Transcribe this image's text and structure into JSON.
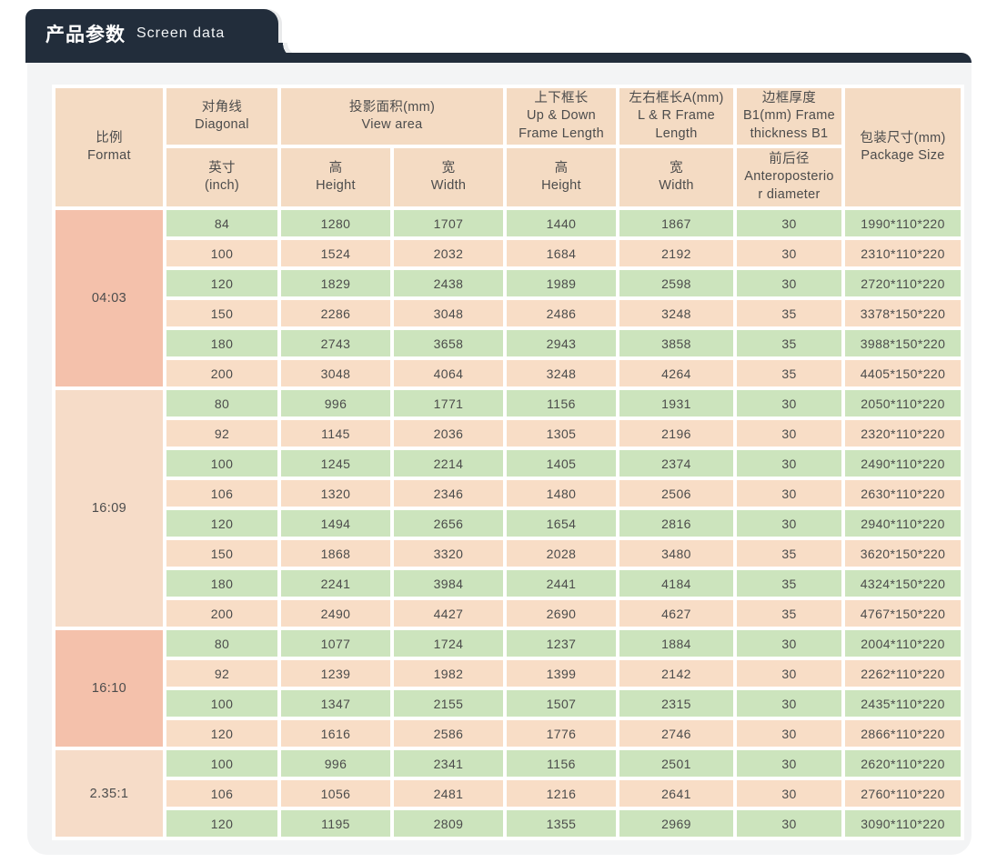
{
  "banner": {
    "title_zh": "产品参数",
    "title_en": "Screen data"
  },
  "table": {
    "header": {
      "format": [
        "比例",
        "Format"
      ],
      "diagonal": [
        "对角线",
        "Diagonal"
      ],
      "diagonal_sub": [
        "英寸",
        "(inch)"
      ],
      "view_area": [
        "投影面积(mm)",
        "View area"
      ],
      "view_height": [
        "高",
        "Height"
      ],
      "view_width": [
        "宽",
        "Width"
      ],
      "ud_frame": [
        "上下框长",
        "Up & Down",
        "Frame Length"
      ],
      "ud_sub": [
        "高",
        "Height"
      ],
      "lr_frame": [
        "左右框长A(mm)",
        "L & R Frame",
        "Length"
      ],
      "lr_sub": [
        "宽",
        "Width"
      ],
      "thickness": [
        "边框厚度",
        "B1(mm) Frame",
        "thickness B1"
      ],
      "thickness_sub": [
        "前后径",
        "Anteroposterio",
        "r diameter"
      ],
      "package": [
        "包装尺寸(mm)",
        "Package Size"
      ]
    },
    "groups": [
      {
        "format": "04:03",
        "tone": "salmon",
        "rows": [
          [
            84,
            1280,
            1707,
            1440,
            1867,
            30,
            "1990*110*220"
          ],
          [
            100,
            1524,
            2032,
            1684,
            2192,
            30,
            "2310*110*220"
          ],
          [
            120,
            1829,
            2438,
            1989,
            2598,
            30,
            "2720*110*220"
          ],
          [
            150,
            2286,
            3048,
            2486,
            3248,
            35,
            "3378*150*220"
          ],
          [
            180,
            2743,
            3658,
            2943,
            3858,
            35,
            "3988*150*220"
          ],
          [
            200,
            3048,
            4064,
            3248,
            4264,
            35,
            "4405*150*220"
          ]
        ]
      },
      {
        "format": "16:09",
        "tone": "peach",
        "rows": [
          [
            80,
            996,
            1771,
            1156,
            1931,
            30,
            "2050*110*220"
          ],
          [
            92,
            1145,
            2036,
            1305,
            2196,
            30,
            "2320*110*220"
          ],
          [
            100,
            1245,
            2214,
            1405,
            2374,
            30,
            "2490*110*220"
          ],
          [
            106,
            1320,
            2346,
            1480,
            2506,
            30,
            "2630*110*220"
          ],
          [
            120,
            1494,
            2656,
            1654,
            2816,
            30,
            "2940*110*220"
          ],
          [
            150,
            1868,
            3320,
            2028,
            3480,
            35,
            "3620*150*220"
          ],
          [
            180,
            2241,
            3984,
            2441,
            4184,
            35,
            "4324*150*220"
          ],
          [
            200,
            2490,
            4427,
            2690,
            4627,
            35,
            "4767*150*220"
          ]
        ]
      },
      {
        "format": "16:10",
        "tone": "salmon",
        "rows": [
          [
            80,
            1077,
            1724,
            1237,
            1884,
            30,
            "2004*110*220"
          ],
          [
            92,
            1239,
            1982,
            1399,
            2142,
            30,
            "2262*110*220"
          ],
          [
            100,
            1347,
            2155,
            1507,
            2315,
            30,
            "2435*110*220"
          ],
          [
            120,
            1616,
            2586,
            1776,
            2746,
            30,
            "2866*110*220"
          ]
        ]
      },
      {
        "format": "2.35:1",
        "tone": "peach",
        "rows": [
          [
            100,
            996,
            2341,
            1156,
            2501,
            30,
            "2620*110*220"
          ],
          [
            106,
            1056,
            2481,
            1216,
            2641,
            30,
            "2760*110*220"
          ],
          [
            120,
            1195,
            2809,
            1355,
            2969,
            30,
            "3090*110*220"
          ]
        ]
      }
    ]
  },
  "colors": {
    "banner_bg": "#222d3b",
    "panel_bg": "#f3f4f5",
    "row_green": "#cce4bd",
    "row_peach": "#f8ddc6",
    "header_peach": "#f4dbc3",
    "group_salmon": "#f4c1ab",
    "group_peach": "#f6dcc8",
    "text": "#4c4c4c"
  }
}
